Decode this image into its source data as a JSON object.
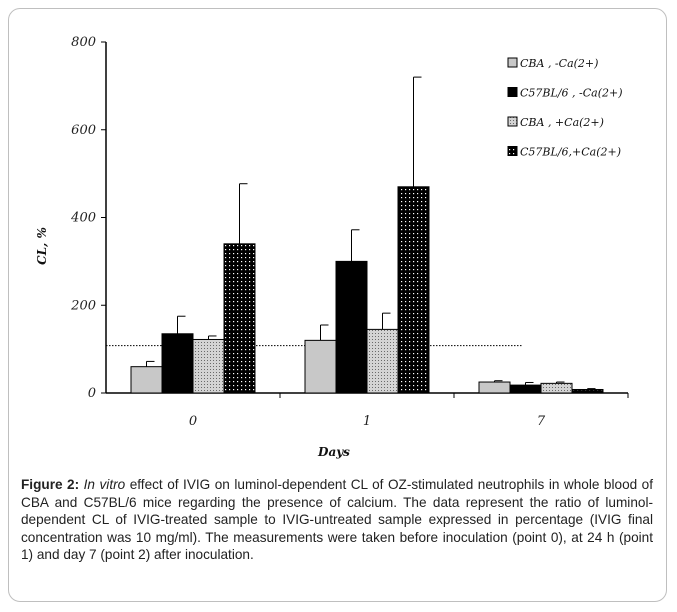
{
  "chart_data": {
    "type": "bar",
    "categories": [
      "0",
      "1",
      "7"
    ],
    "xlabel": "Days",
    "ylabel": "CL, %",
    "ylim": [
      0,
      800
    ],
    "yticks": [
      "0",
      "200",
      "400",
      "600",
      "800"
    ],
    "grid": false,
    "legend_position": "top-right",
    "reference_line": 108,
    "series": [
      {
        "name": "CBA , -Ca(2+)",
        "values": [
          60,
          120,
          25
        ],
        "errors": [
          12,
          35,
          3
        ],
        "color": "#c8c8c8",
        "pattern": "solid-light"
      },
      {
        "name": "C57BL/6 , -Ca(2+)",
        "values": [
          135,
          300,
          18
        ],
        "errors": [
          40,
          72,
          6
        ],
        "color": "#000000",
        "pattern": "solid-black"
      },
      {
        "name": "CBA , +Ca(2+)",
        "values": [
          122,
          145,
          22
        ],
        "errors": [
          8,
          37,
          3
        ],
        "color": "#cfcfcf",
        "pattern": "fine-dots"
      },
      {
        "name": "C57BL/6,+Ca(2+)",
        "values": [
          340,
          470,
          8
        ],
        "errors": [
          137,
          250,
          2
        ],
        "color": "#000000",
        "pattern": "white-dots"
      }
    ]
  },
  "caption": {
    "label": "Figure 2:",
    "italic": "In vitro",
    "text": "effect of IVIG on luminol-dependent CL of OZ-stimulated neutrophils in whole blood of CBA and C57BL/6 mice regarding the presence of calcium. The data represent the ratio of luminol-dependent CL of IVIG-treated sample to IVIG-untreated sample expressed in percentage (IVIG final concentration was 10 mg/ml). The measurements were taken before inoculation (point 0), at 24 h (point 1) and day 7 (point 2) after inoculation."
  }
}
